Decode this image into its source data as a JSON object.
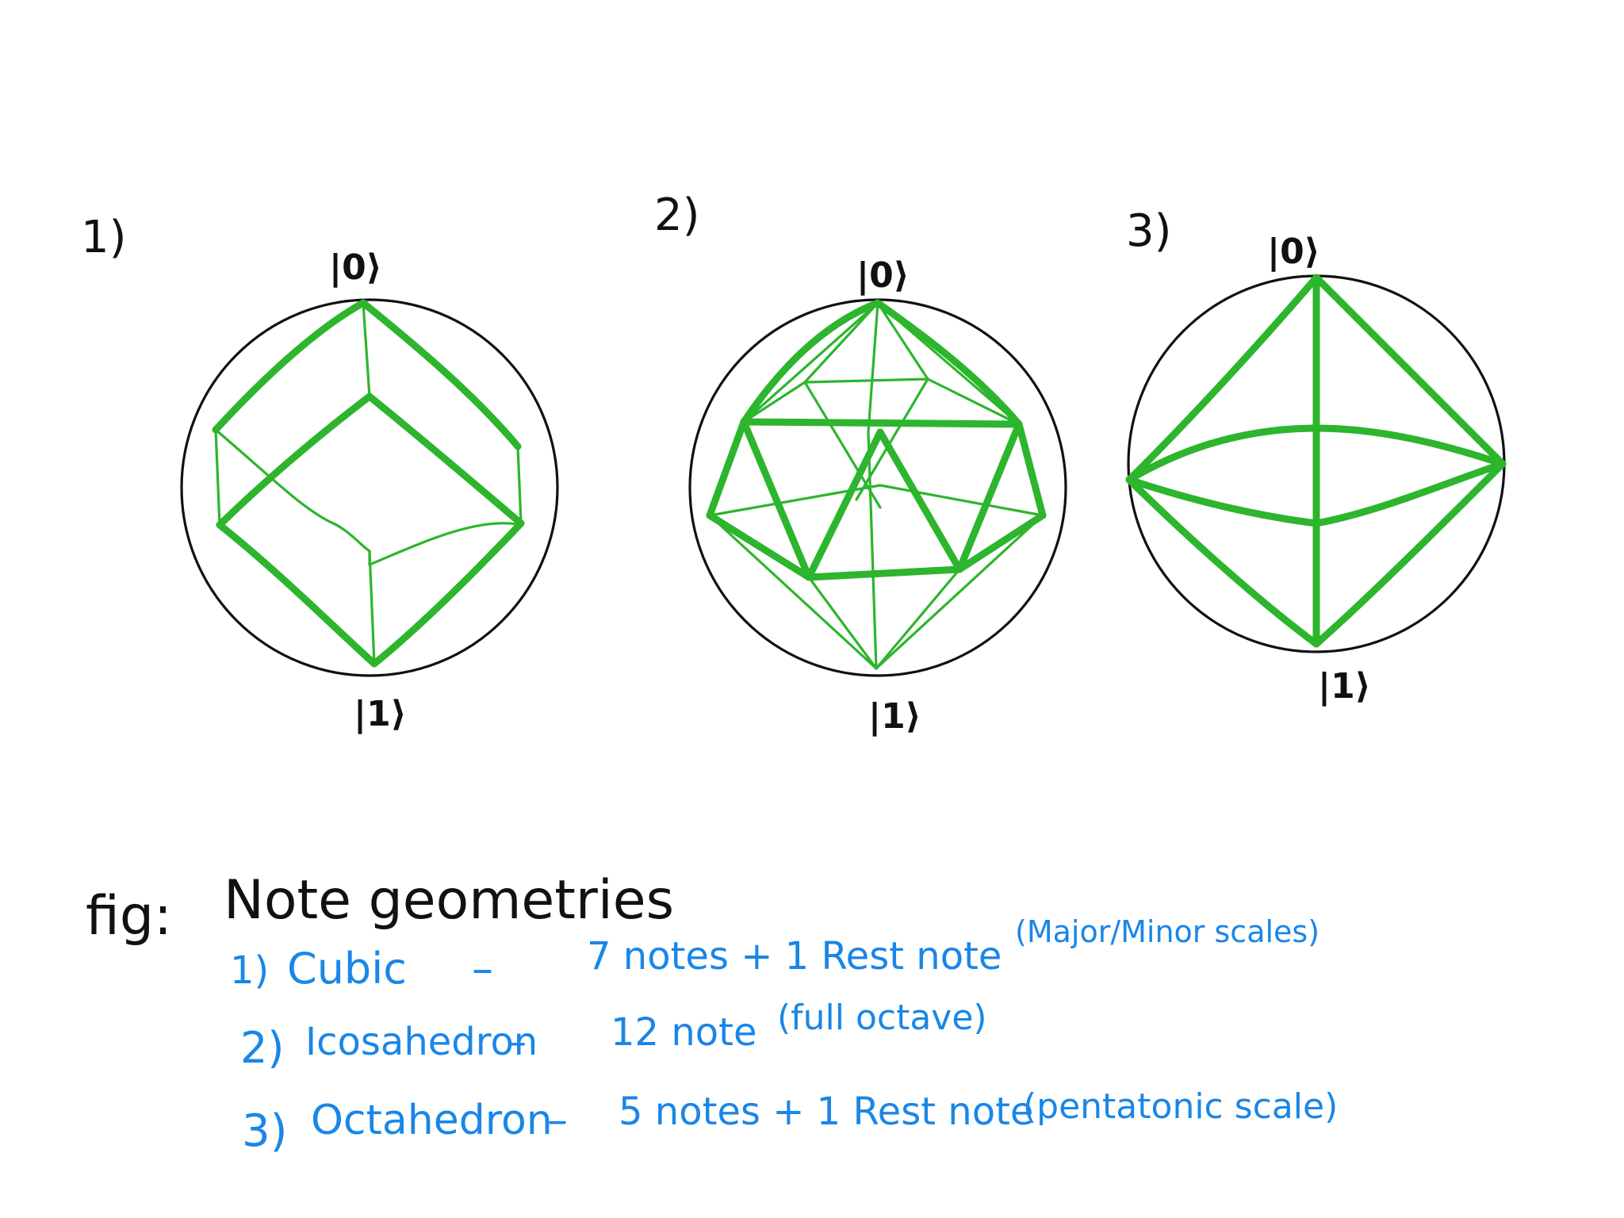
{
  "figure": {
    "caption_prefix": "fig:",
    "caption_title": "Note geometries"
  },
  "diagrams": [
    {
      "number": "1)",
      "top_label": "|0⟩",
      "bottom_label": "|1⟩"
    },
    {
      "number": "2)",
      "top_label": "|0⟩",
      "bottom_label": "|1⟩"
    },
    {
      "number": "3)",
      "top_label": "|0⟩",
      "bottom_label": "|1⟩"
    }
  ],
  "legend": [
    {
      "index": "1)",
      "shape": "Cubic",
      "dash": "–",
      "notes": "7 notes + 1 Rest note",
      "note": "(Major/Minor scales)"
    },
    {
      "index": "2)",
      "shape": "Icosahedron",
      "dash": "–",
      "notes": "12 note",
      "note": "(full octave)"
    },
    {
      "index": "3)",
      "shape": "Octahedron",
      "dash": "–",
      "notes": "5 notes + 1 Rest note",
      "note": "(pentatonic scale)"
    }
  ],
  "colors": {
    "ink": "#111111",
    "geometry_green": "#2db52d",
    "annotation_blue": "#1a86e6"
  }
}
